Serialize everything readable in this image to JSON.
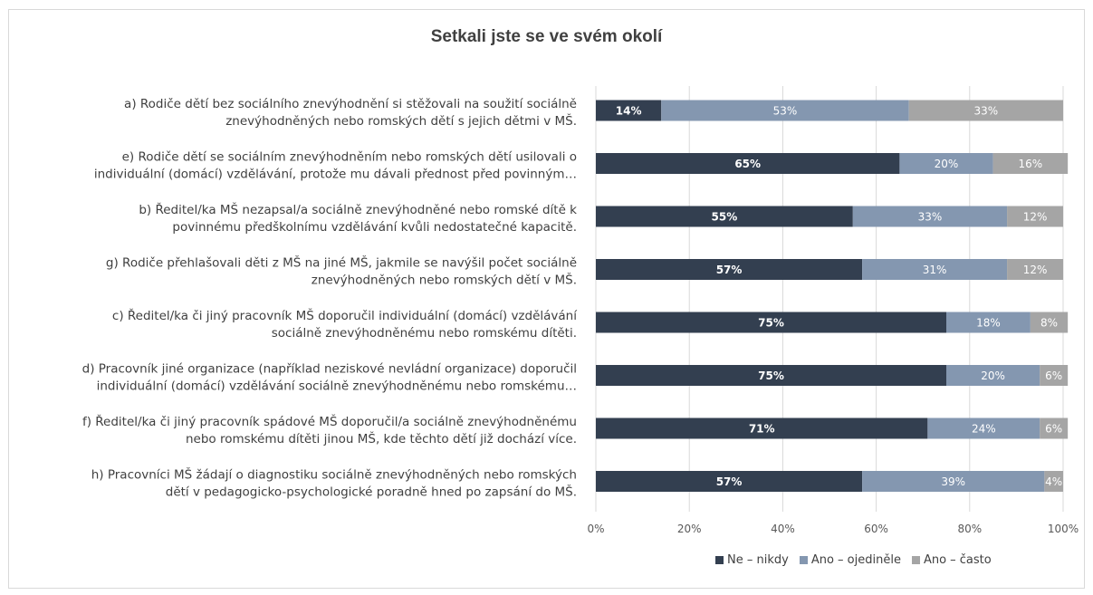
{
  "chart_data": {
    "type": "bar",
    "orientation": "horizontal",
    "stacked": true,
    "title": "Setkali jste se ve svém okolí",
    "categories": [
      [
        "a) Rodiče dětí bez sociálního znevýhodnění si stěžovali na soužití sociálně",
        "znevýhodněných nebo romských dětí s jejich dětmi v MŠ."
      ],
      [
        "e) Rodiče dětí se sociálním znevýhodněním nebo romských dětí usilovali o",
        "individuální (domácí) vzdělávání, protože mu dávali přednost před povinným…"
      ],
      [
        "b) Ředitel/ka MŠ nezapsal/a sociálně znevýhodněné nebo romské dítě k",
        "povinnému předškolnímu vzdělávání kvůli nedostatečné kapacitě."
      ],
      [
        "g) Rodiče přehlašovali děti z MŠ na jiné MŠ, jakmile se navýšil počet sociálně",
        "znevýhodněných nebo romských dětí v MŠ."
      ],
      [
        "c) Ředitel/ka či jiný pracovník MŠ doporučil individuální (domácí) vzdělávání",
        "sociálně znevýhodněnému nebo romskému dítěti."
      ],
      [
        "d) Pracovník jiné organizace (například neziskové nevládní organizace) doporučil",
        "individuální (domácí) vzdělávání sociálně znevýhodněnému nebo romskému…"
      ],
      [
        "f) Ředitel/ka či jiný pracovník spádové MŠ doporučil/a sociálně znevýhodněnému",
        "nebo romskému dítěti jinou MŠ, kde těchto dětí již dochází více."
      ],
      [
        "h) Pracovníci MŠ žádají o diagnostiku sociálně znevýhodněných nebo romských",
        "dětí v pedagogicko-psychologické poradně hned po zapsání do MŠ."
      ]
    ],
    "series": [
      {
        "name": "Ne – nikdy",
        "color": "#333f50",
        "label_color": "#ffffff",
        "label_bold": true,
        "values": [
          14,
          65,
          55,
          57,
          75,
          75,
          71,
          57
        ]
      },
      {
        "name": "Ano – ojediněle",
        "color": "#8497b0",
        "label_color": "#ffffff",
        "label_bold": false,
        "values": [
          53,
          20,
          33,
          31,
          18,
          20,
          24,
          39
        ]
      },
      {
        "name": "Ano – často",
        "color": "#a5a5a5",
        "label_color": "#ffffff",
        "label_bold": false,
        "values": [
          33,
          16,
          12,
          12,
          8,
          6,
          6,
          4
        ]
      }
    ],
    "xlim": [
      0,
      100
    ],
    "xticks": [
      "0%",
      "20%",
      "40%",
      "60%",
      "80%",
      "100%"
    ],
    "xtick_values": [
      0,
      20,
      40,
      60,
      80,
      100
    ],
    "value_suffix": "%",
    "grid": true,
    "legend_position": "bottom"
  }
}
